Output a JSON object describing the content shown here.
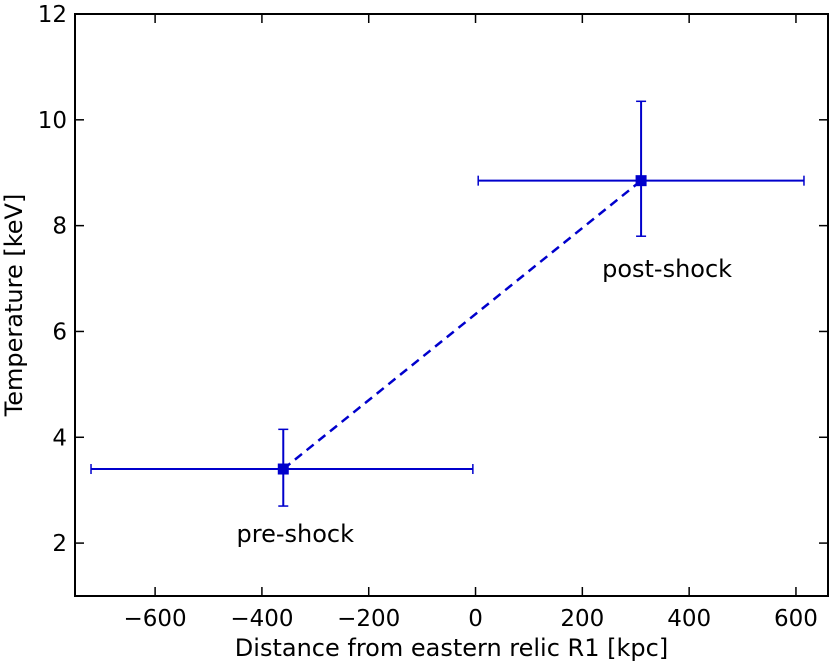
{
  "chart_data": {
    "type": "scatter",
    "xlabel": "Distance from eastern relic R1 [kpc]",
    "ylabel": "Temperature [keV]",
    "xlim": [
      -750,
      660
    ],
    "ylim": [
      1,
      12
    ],
    "x_ticks": [
      -600,
      -400,
      -200,
      0,
      200,
      400,
      600
    ],
    "x_tick_labels": [
      "−600",
      "−400",
      "−200",
      "0",
      "200",
      "400",
      "600"
    ],
    "y_ticks": [
      2,
      4,
      6,
      8,
      10,
      12
    ],
    "y_tick_labels": [
      "2",
      "4",
      "6",
      "8",
      "10",
      "12"
    ],
    "grid": false,
    "color": "#0000cc",
    "series": [
      {
        "points": [
          {
            "x": -360,
            "y": 3.4,
            "x_lo": -720,
            "x_hi": -5,
            "y_lo": 2.7,
            "y_hi": 4.15,
            "label": "pre-shock"
          },
          {
            "x": 310,
            "y": 8.85,
            "x_lo": 5,
            "x_hi": 615,
            "y_lo": 7.8,
            "y_hi": 10.35,
            "label": "post-shock"
          }
        ],
        "connector": "dashed"
      }
    ]
  }
}
